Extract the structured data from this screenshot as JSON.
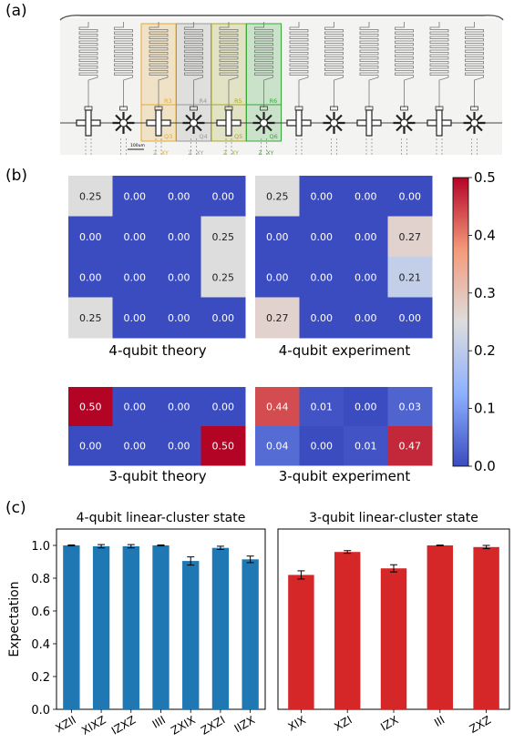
{
  "panel_labels": {
    "a": "(a)",
    "b": "(b)",
    "c": "(c)"
  },
  "chip": {
    "resonator_labels": [
      "R3",
      "R4",
      "R5",
      "R6"
    ],
    "qubit_labels": [
      "Q3",
      "Q4",
      "Q5",
      "Q6"
    ],
    "control_labels": [
      "Z",
      "XY"
    ],
    "scale_bar": "100um",
    "highlight_colors": [
      "#e8a930",
      "#9a9a9a",
      "#a8a82a",
      "#3aa83a"
    ],
    "num_qubits": 12
  },
  "heatmaps": [
    {
      "caption": "4-qubit theory",
      "values": [
        [
          0.25,
          0,
          0,
          0
        ],
        [
          0,
          0,
          0,
          0.25
        ],
        [
          0,
          0,
          0,
          0.25
        ],
        [
          0.25,
          0,
          0,
          0
        ]
      ],
      "labels": [
        [
          "0.25",
          "0.00",
          "0.00",
          "0.00"
        ],
        [
          "0.00",
          "0.00",
          "0.00",
          "0.25"
        ],
        [
          "0.00",
          "0.00",
          "0.00",
          "0.25"
        ],
        [
          "0.25",
          "0.00",
          "0.00",
          "0.00"
        ]
      ]
    },
    {
      "caption": "4-qubit experiment",
      "values": [
        [
          0.25,
          0,
          0,
          0
        ],
        [
          0,
          0,
          0,
          0.27
        ],
        [
          0,
          0,
          0,
          0.21
        ],
        [
          0.27,
          0,
          0,
          0
        ]
      ],
      "labels": [
        [
          "0.25",
          "0.00",
          "0.00",
          "0.00"
        ],
        [
          "0.00",
          "0.00",
          "0.00",
          "0.27"
        ],
        [
          "0.00",
          "0.00",
          "0.00",
          "0.21"
        ],
        [
          "0.27",
          "0.00",
          "0.00",
          "0.00"
        ]
      ]
    },
    {
      "caption": "3-qubit theory",
      "values": [
        [
          0.5,
          0,
          0,
          0
        ],
        [
          0,
          0,
          0,
          0.5
        ]
      ],
      "labels": [
        [
          "0.50",
          "0.00",
          "0.00",
          "0.00"
        ],
        [
          "0.00",
          "0.00",
          "0.00",
          "0.50"
        ]
      ]
    },
    {
      "caption": "3-qubit experiment",
      "values": [
        [
          0.44,
          0.01,
          0,
          0.03
        ],
        [
          0.04,
          0,
          0.01,
          0.47
        ]
      ],
      "labels": [
        [
          "0.44",
          "0.01",
          "0.00",
          "0.03"
        ],
        [
          "0.04",
          "0.00",
          "0.01",
          "0.47"
        ]
      ]
    }
  ],
  "colorbar": {
    "ticks": [
      "0.0",
      "0.1",
      "0.2",
      "0.3",
      "0.4",
      "0.5"
    ],
    "min": 0.0,
    "max": 0.5,
    "colormap": "coolwarm"
  },
  "chart_data": [
    {
      "type": "bar",
      "title": "4-qubit linear-cluster state",
      "ylabel": "Expectation",
      "categories": [
        "XZII",
        "XIXZ",
        "IZXZ",
        "IIII",
        "ZXIX",
        "ZXZI",
        "IIZX"
      ],
      "values": [
        1.0,
        0.995,
        0.995,
        1.0,
        0.905,
        0.985,
        0.915
      ],
      "errors": [
        0.003,
        0.01,
        0.01,
        0.003,
        0.025,
        0.01,
        0.02
      ],
      "ylim": [
        0,
        1.1
      ],
      "yticks": [
        "0.0",
        "0.2",
        "0.4",
        "0.6",
        "0.8",
        "1.0"
      ],
      "color": "#1f77b4"
    },
    {
      "type": "bar",
      "title": "3-qubit linear-cluster state",
      "categories": [
        "XIX",
        "XZI",
        "IZX",
        "III",
        "ZXZ"
      ],
      "values": [
        0.82,
        0.96,
        0.86,
        1.0,
        0.99
      ],
      "errors": [
        0.025,
        0.008,
        0.022,
        0.002,
        0.01
      ],
      "ylim": [
        0,
        1.1
      ],
      "color": "#d62728"
    }
  ]
}
